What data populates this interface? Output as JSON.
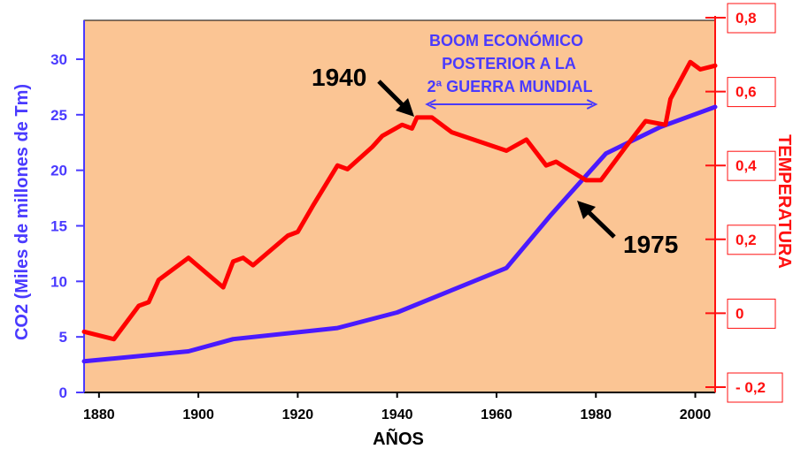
{
  "chart_data": {
    "type": "line",
    "xlabel": "AÑOS",
    "ylabel_left": "CO2 (Miles de millones de Tm)",
    "ylabel_right": "TEMPERATURA",
    "xlim": [
      1877,
      2004
    ],
    "ylim_left": [
      0,
      33.5
    ],
    "ylim_right": [
      -0.2,
      0.8
    ],
    "x_ticks": [
      "1880",
      "1900",
      "1920",
      "1940",
      "1960",
      "1980",
      "2000"
    ],
    "y_left_ticks": [
      "0",
      "5",
      "10",
      "15",
      "20",
      "25",
      "30"
    ],
    "y_right_ticks": [
      "- 0,2",
      "0",
      "0,2",
      "0,4",
      "0,6",
      "0,8"
    ],
    "y_right_values": [
      -0.2,
      0,
      0.2,
      0.4,
      0.6,
      0.8
    ],
    "grid": false,
    "colors": {
      "plot_bg": "#fbc594",
      "co2": "#4a1aff",
      "temperature": "#ff0000",
      "left_axis_text": "#4a3aff",
      "right_axis_text": "#ff1010"
    },
    "series": [
      {
        "axis": "left",
        "color": "#4a1aff",
        "x": [
          1877,
          1898,
          1907,
          1928,
          1940,
          1962,
          1971,
          1982,
          1993,
          2004
        ],
        "y": [
          2.8,
          3.7,
          4.8,
          5.8,
          7.2,
          11.2,
          16,
          21.5,
          23.9,
          25.7
        ]
      },
      {
        "axis": "right",
        "color": "#ff0000",
        "x": [
          1877,
          1883,
          1888,
          1890,
          1892,
          1898,
          1905,
          1907,
          1909,
          1911,
          1918,
          1920,
          1923,
          1928,
          1930,
          1935,
          1937,
          1941,
          1943,
          1944,
          1947,
          1951,
          1962,
          1966,
          1970,
          1972,
          1978,
          1981,
          1986,
          1990,
          1994,
          1995,
          1999,
          2001,
          2004
        ],
        "y": [
          -0.05,
          -0.07,
          0.02,
          0.03,
          0.09,
          0.15,
          0.07,
          0.14,
          0.15,
          0.13,
          0.21,
          0.22,
          0.29,
          0.4,
          0.39,
          0.45,
          0.48,
          0.51,
          0.5,
          0.53,
          0.53,
          0.49,
          0.44,
          0.47,
          0.4,
          0.41,
          0.36,
          0.36,
          0.45,
          0.52,
          0.51,
          0.58,
          0.68,
          0.66,
          0.67
        ]
      }
    ],
    "annotations": {
      "boom_line1": "BOOM ECONÓMICO",
      "boom_line2": "POSTERIOR A LA",
      "boom_line3": "2ª GUERRA MUNDIAL",
      "boom_x": [
        1946,
        1980
      ],
      "label_1940": "1940",
      "label_1975": "1975"
    }
  }
}
